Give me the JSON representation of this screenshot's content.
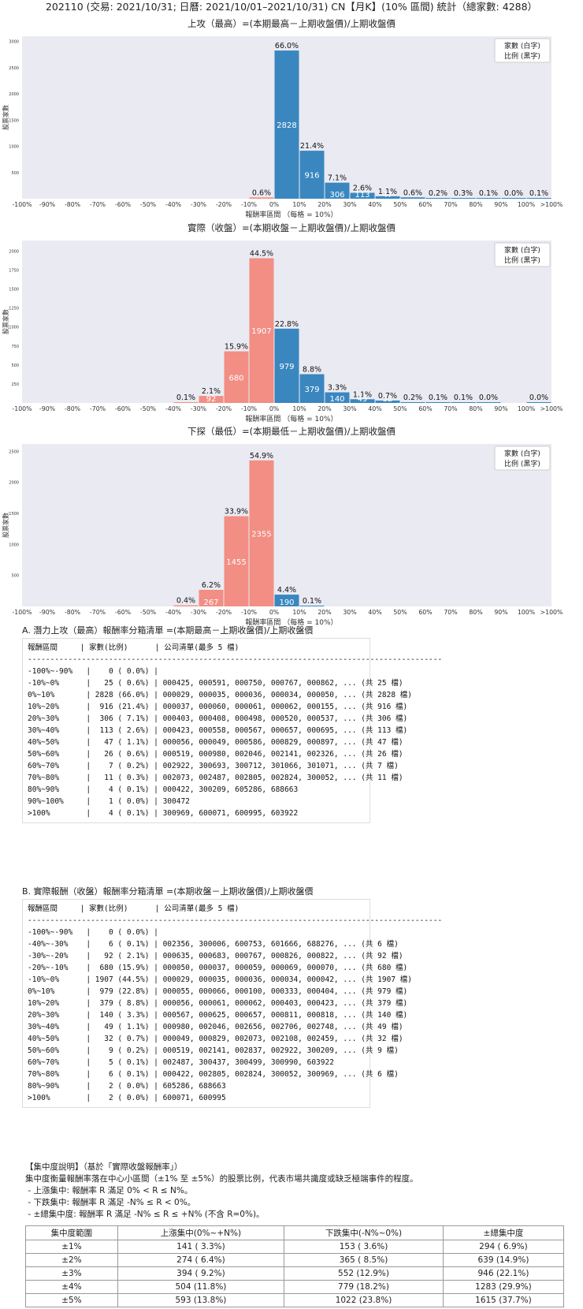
{
  "page_title": "202110 (交易: 2021/10/31; 日曆: 2021/10/01–2021/10/31) CN【月K】(10% 區間) 統計（總家數: 4288）",
  "chart_data": [
    {
      "type": "bar",
      "title": "上攻（最高）=(本期最高－上期收盤價)/上期收盤價",
      "xlabel": "報酬率區間 （每格 = 10%）",
      "ylabel": "股票家數",
      "legend": [
        "家數 (白字)",
        "比例 (黑字)"
      ],
      "legend_position": "top-right",
      "grid": false,
      "ylim": [
        0,
        3100
      ],
      "yticks": [
        500,
        1000,
        1500,
        2000,
        2500,
        3000
      ],
      "xticks": [
        "-100%",
        "-90%",
        "-80%",
        "-70%",
        "-60%",
        "-50%",
        "-40%",
        "-30%",
        "-20%",
        "-10%",
        "0%",
        "10%",
        "20%",
        "30%",
        "40%",
        "50%",
        "60%",
        "70%",
        "80%",
        "90%",
        "100%",
        ">100%"
      ],
      "bins": [
        {
          "start": 9,
          "value": 25,
          "pct": "0.6%",
          "color": "neg",
          "show_count": false
        },
        {
          "start": 10,
          "value": 2828,
          "pct": "66.0%",
          "color": "pos",
          "show_count": true
        },
        {
          "start": 11,
          "value": 916,
          "pct": "21.4%",
          "color": "pos",
          "show_count": true
        },
        {
          "start": 12,
          "value": 306,
          "pct": "7.1%",
          "color": "pos",
          "show_count": true
        },
        {
          "start": 13,
          "value": 113,
          "pct": "2.6%",
          "color": "pos",
          "show_count": true
        },
        {
          "start": 14,
          "value": 47,
          "pct": "1.1%",
          "color": "pos",
          "show_count": true
        },
        {
          "start": 15,
          "value": 26,
          "pct": "0.6%",
          "color": "pos",
          "show_count": false
        },
        {
          "start": 16,
          "value": 7,
          "pct": "0.2%",
          "color": "pos",
          "show_count": false
        },
        {
          "start": 17,
          "value": 11,
          "pct": "0.3%",
          "color": "pos",
          "show_count": false
        },
        {
          "start": 18,
          "value": 4,
          "pct": "0.1%",
          "color": "pos",
          "show_count": false
        },
        {
          "start": 19,
          "value": 1,
          "pct": "0.0%",
          "color": "pos",
          "show_count": false
        },
        {
          "start": 20,
          "value": 4,
          "pct": "0.1%",
          "color": "pos",
          "show_count": false
        }
      ]
    },
    {
      "type": "bar",
      "title": "實際（收盤）=(本期收盤－上期收盤價)/上期收盤價",
      "xlabel": "報酬率區間 （每格 = 10%）",
      "ylabel": "股票家數",
      "legend": [
        "家數 (白字)",
        "比例 (黑字)"
      ],
      "legend_position": "top-right",
      "grid": false,
      "ylim": [
        0,
        2140
      ],
      "yticks": [
        250,
        500,
        750,
        1000,
        1250,
        1500,
        1750,
        2000
      ],
      "xticks": [
        "-100%",
        "-90%",
        "-80%",
        "-70%",
        "-60%",
        "-50%",
        "-40%",
        "-30%",
        "-20%",
        "-10%",
        "0%",
        "10%",
        "20%",
        "30%",
        "40%",
        "50%",
        "60%",
        "70%",
        "80%",
        "90%",
        "100%",
        ">100%"
      ],
      "bins": [
        {
          "start": 6,
          "value": 6,
          "pct": "0.1%",
          "color": "neg",
          "show_count": false
        },
        {
          "start": 7,
          "value": 92,
          "pct": "2.1%",
          "color": "neg",
          "show_count": true
        },
        {
          "start": 8,
          "value": 680,
          "pct": "15.9%",
          "color": "neg",
          "show_count": true
        },
        {
          "start": 9,
          "value": 1907,
          "pct": "44.5%",
          "color": "neg",
          "show_count": true
        },
        {
          "start": 10,
          "value": 979,
          "pct": "22.8%",
          "color": "pos",
          "show_count": true
        },
        {
          "start": 11,
          "value": 379,
          "pct": "8.8%",
          "color": "pos",
          "show_count": true
        },
        {
          "start": 12,
          "value": 140,
          "pct": "3.3%",
          "color": "pos",
          "show_count": true
        },
        {
          "start": 13,
          "value": 49,
          "pct": "1.1%",
          "color": "pos",
          "show_count": true
        },
        {
          "start": 14,
          "value": 32,
          "pct": "0.7%",
          "color": "pos",
          "show_count": true
        },
        {
          "start": 15,
          "value": 9,
          "pct": "0.2%",
          "color": "pos",
          "show_count": false
        },
        {
          "start": 16,
          "value": 5,
          "pct": "0.1%",
          "color": "pos",
          "show_count": false
        },
        {
          "start": 17,
          "value": 6,
          "pct": "0.1%",
          "color": "pos",
          "show_count": false
        },
        {
          "start": 18,
          "value": 2,
          "pct": "0.0%",
          "color": "pos",
          "show_count": false
        },
        {
          "start": 20,
          "value": 2,
          "pct": "0.0%",
          "color": "pos",
          "show_count": false
        }
      ]
    },
    {
      "type": "bar",
      "title": "下探（最低）=(本期最低－上期收盤價)/上期收盤價",
      "xlabel": "報酬率區間 （每格 = 10%）",
      "ylabel": "股票家數",
      "legend": [
        "家數 (白字)",
        "比例 (黑字)"
      ],
      "legend_position": "top-right",
      "grid": false,
      "ylim": [
        0,
        2620
      ],
      "yticks": [
        500,
        1000,
        1500,
        2000,
        2500
      ],
      "xticks": [
        "-100%",
        "-90%",
        "-80%",
        "-70%",
        "-60%",
        "-50%",
        "-40%",
        "-30%",
        "-20%",
        "-10%",
        "0%",
        "10%",
        "20%",
        "30%",
        "40%",
        "50%",
        "60%",
        "70%",
        "80%",
        "90%",
        "100%",
        ">100%"
      ],
      "bins": [
        {
          "start": 6,
          "value": 17,
          "pct": "0.4%",
          "color": "neg",
          "show_count": false
        },
        {
          "start": 7,
          "value": 267,
          "pct": "6.2%",
          "color": "neg",
          "show_count": true
        },
        {
          "start": 8,
          "value": 1455,
          "pct": "33.9%",
          "color": "neg",
          "show_count": true
        },
        {
          "start": 9,
          "value": 2355,
          "pct": "54.9%",
          "color": "neg",
          "show_count": true
        },
        {
          "start": 10,
          "value": 190,
          "pct": "4.4%",
          "color": "pos",
          "show_count": true
        },
        {
          "start": 11,
          "value": 4,
          "pct": "0.1%",
          "color": "pos",
          "show_count": false
        }
      ]
    }
  ],
  "colors": {
    "pos": "#3a87c0",
    "neg": "#f28e84",
    "plot_bg": "#eaeaf2"
  },
  "listing_a": {
    "title": "A. 潛力上攻（最高）報酬率分箱清單 =(本期最高－上期收盤價)/上期收盤價",
    "header": "報酬區間     | 家數(比例)      | 公司清單(最多 5 檔)",
    "divider": "--------------------------------------------------------------------------------------------",
    "rows": [
      "-100%~-90%   |    0 ( 0.0%) |",
      "-10%~0%      |   25 ( 0.6%) | 000425, 000591, 000750, 000767, 000862, ... (共 25 檔)",
      "0%~10%       | 2828 (66.0%) | 000029, 000035, 000036, 000034, 000050, ... (共 2828 檔)",
      "10%~20%      |  916 (21.4%) | 000037, 000060, 000061, 000062, 000155, ... (共 916 檔)",
      "20%~30%      |  306 ( 7.1%) | 000403, 000408, 000498, 000520, 000537, ... (共 306 檔)",
      "30%~40%      |  113 ( 2.6%) | 000423, 000558, 000567, 000657, 000695, ... (共 113 檔)",
      "40%~50%      |   47 ( 1.1%) | 000056, 000049, 000586, 000829, 000897, ... (共 47 檔)",
      "50%~60%      |   26 ( 0.6%) | 000519, 000980, 002046, 002141, 002326, ... (共 26 檔)",
      "60%~70%      |    7 ( 0.2%) | 002922, 300693, 300712, 301066, 301071, ... (共 7 檔)",
      "70%~80%      |   11 ( 0.3%) | 002073, 002487, 002805, 002824, 300052, ... (共 11 檔)",
      "80%~90%      |    4 ( 0.1%) | 000422, 300209, 605286, 688663",
      "90%~100%     |    1 ( 0.0%) | 300472",
      ">100%        |    4 ( 0.1%) | 300969, 600071, 600995, 603922"
    ]
  },
  "listing_b": {
    "title": "B. 實際報酬（收盤）報酬率分箱清單 =(本期收盤－上期收盤價)/上期收盤價",
    "header": "報酬區間     | 家數(比例)      | 公司清單(最多 5 檔)",
    "divider": "--------------------------------------------------------------------------------------------",
    "rows": [
      "-100%~-90%   |    0 ( 0.0%) |",
      "-40%~-30%    |    6 ( 0.1%) | 002356, 300006, 600753, 601666, 688276, ... (共 6 檔)",
      "-30%~-20%    |   92 ( 2.1%) | 000635, 000683, 000767, 000826, 000822, ... (共 92 檔)",
      "-20%~-10%    |  680 (15.9%) | 000050, 000037, 000059, 000069, 000070, ... (共 680 檔)",
      "-10%~0%      | 1907 (44.5%) | 000029, 000035, 000036, 000034, 000042, ... (共 1907 檔)",
      "0%~10%       |  979 (22.8%) | 000055, 000066, 000100, 000333, 000404, ... (共 979 檔)",
      "10%~20%      |  379 ( 8.8%) | 000056, 000061, 000062, 000403, 000423, ... (共 379 檔)",
      "20%~30%      |  140 ( 3.3%) | 000567, 000625, 000657, 000811, 000818, ... (共 140 檔)",
      "30%~40%      |   49 ( 1.1%) | 000980, 002046, 002656, 002706, 002748, ... (共 49 檔)",
      "40%~50%      |   32 ( 0.7%) | 000049, 000829, 002073, 002108, 002459, ... (共 32 檔)",
      "50%~60%      |    9 ( 0.2%) | 000519, 002141, 002837, 002922, 300209, ... (共 9 檔)",
      "60%~70%      |    5 ( 0.1%) | 002487, 300437, 300499, 300990, 603922",
      "70%~80%      |    6 ( 0.1%) | 000422, 002805, 002824, 300052, 300969, ... (共 6 檔)",
      "80%~90%      |    2 ( 0.0%) | 605286, 688663",
      ">100%        |    2 ( 0.0%) | 600071, 600995"
    ]
  },
  "concentration": {
    "heading": "【集中度說明】（基於「實際收盤報酬率」）",
    "desc": "集中度衡量報酬率落在中心小區間（±1% 至 ±5%）的股票比例，代表市場共識度或缺乏極端事件的程度。",
    "bullets": [
      " - 上漲集中: 報酬率 R 滿足 0% < R ≤ N%。",
      " - 下跌集中: 報酬率 R 滿足 -N% ≤ R < 0%。",
      " - ±總集中度: 報酬率 R 滿足 -N% ≤ R ≤ +N% (不含 R=0%)。"
    ],
    "columns": [
      "集中度範圍",
      "上漲集中(0%~+N%)",
      "下跌集中(-N%~0%)",
      "±總集中度"
    ],
    "rows": [
      [
        "±1%",
        "141 ( 3.3%)",
        "153 ( 3.6%)",
        "294 ( 6.9%)"
      ],
      [
        "±2%",
        "274 ( 6.4%)",
        "365 ( 8.5%)",
        "639 (14.9%)"
      ],
      [
        "±3%",
        "394 ( 9.2%)",
        "552 (12.9%)",
        "946 (22.1%)"
      ],
      [
        "±4%",
        "504 (11.8%)",
        "779 (18.2%)",
        "1283 (29.9%)"
      ],
      [
        "±5%",
        "593 (13.8%)",
        "1022 (23.8%)",
        "1615 (37.7%)"
      ]
    ]
  }
}
